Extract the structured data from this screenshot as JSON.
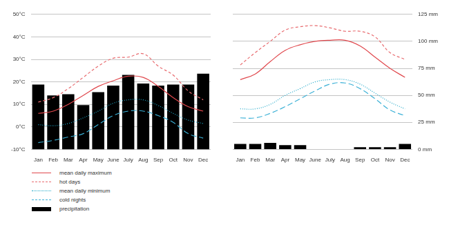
{
  "chart_data": [
    {
      "type": "bar",
      "categories": [
        "Jan",
        "Feb",
        "Mar",
        "Apr",
        "May",
        "June",
        "July",
        "Aug",
        "Sep",
        "Oct",
        "Nov",
        "Dec"
      ],
      "ylim": [
        -10,
        50
      ],
      "yticks": [
        {
          "value": -10,
          "label": "-10°C"
        },
        {
          "value": 0,
          "label": "0°C"
        },
        {
          "value": 10,
          "label": "10°C"
        },
        {
          "value": 20,
          "label": "20°C"
        },
        {
          "value": 30,
          "label": "30°C"
        },
        {
          "value": 40,
          "label": "40°C"
        },
        {
          "value": 50,
          "label": "50°C"
        }
      ],
      "y2lim": [
        0,
        125
      ],
      "grid": true,
      "legend": "bottom",
      "series": [
        {
          "name": "mean daily maximum",
          "type": "line",
          "line_style": "solid",
          "color": "#e0474c",
          "values": [
            6,
            7,
            10,
            14,
            18,
            20.5,
            22.5,
            22,
            18,
            13,
            9,
            7
          ]
        },
        {
          "name": "hot days",
          "type": "line",
          "line_style": "dashed",
          "color": "#e86a6e",
          "values": [
            11,
            13,
            17,
            22,
            27,
            30.5,
            31,
            32.5,
            27,
            23,
            16,
            12
          ]
        },
        {
          "name": "mean daily minimum",
          "type": "line",
          "line_style": "dotted",
          "color": "#1aa6c8",
          "values": [
            1,
            0.5,
            1.5,
            4,
            7,
            10.5,
            12,
            12,
            9.5,
            6,
            3,
            1.5
          ]
        },
        {
          "name": "cold nights",
          "type": "line",
          "line_style": "long-dashed",
          "color": "#3ab0d6",
          "values": [
            -7,
            -6,
            -4.5,
            -3,
            1,
            5,
            7,
            7,
            5,
            2,
            -3,
            -5
          ]
        },
        {
          "name": "precipitation",
          "type": "bar",
          "axis": "y2",
          "color": "#000000",
          "values": [
            60,
            50,
            51,
            41,
            53,
            59,
            69,
            61,
            59,
            60,
            60,
            70
          ]
        }
      ]
    },
    {
      "type": "bar",
      "categories": [
        "Jan",
        "Feb",
        "Mar",
        "Apr",
        "May",
        "June",
        "July",
        "Aug",
        "Sep",
        "Oct",
        "Nov",
        "Dec"
      ],
      "ylim": [
        -10,
        50
      ],
      "y2lim": [
        0,
        125
      ],
      "y2ticks": [
        {
          "value": 0,
          "label": "0 mm"
        },
        {
          "value": 25,
          "label": "25 mm"
        },
        {
          "value": 50,
          "label": "50 mm"
        },
        {
          "value": 75,
          "label": "75 mm"
        },
        {
          "value": 100,
          "label": "100 mm"
        },
        {
          "value": 125,
          "label": "125 mm"
        }
      ],
      "grid": true,
      "series": [
        {
          "name": "mean daily maximum",
          "type": "line",
          "line_style": "solid",
          "color": "#e0474c",
          "values": [
            21,
            23.5,
            29,
            34,
            36.5,
            38,
            38.5,
            38.5,
            36,
            31,
            26,
            22
          ]
        },
        {
          "name": "hot days",
          "type": "line",
          "line_style": "dashed",
          "color": "#e86a6e",
          "values": [
            27.5,
            33,
            38,
            43,
            44.5,
            45,
            44,
            42.5,
            42.5,
            40,
            33,
            30
          ]
        },
        {
          "name": "mean daily minimum",
          "type": "line",
          "line_style": "dotted",
          "color": "#1aa6c8",
          "values": [
            8,
            8,
            10,
            14,
            17,
            20,
            21,
            21,
            19,
            15,
            11,
            8
          ]
        },
        {
          "name": "cold nights",
          "type": "line",
          "line_style": "long-dashed",
          "color": "#3ab0d6",
          "values": [
            4,
            4,
            6,
            9,
            12.5,
            16,
            19,
            19.5,
            17,
            12.5,
            7.5,
            5
          ]
        },
        {
          "name": "precipitation",
          "type": "bar",
          "axis": "y2",
          "color": "#000000",
          "values": [
            5,
            5,
            6,
            4,
            4,
            0,
            0,
            0,
            2,
            2,
            2,
            5
          ]
        }
      ]
    }
  ]
}
